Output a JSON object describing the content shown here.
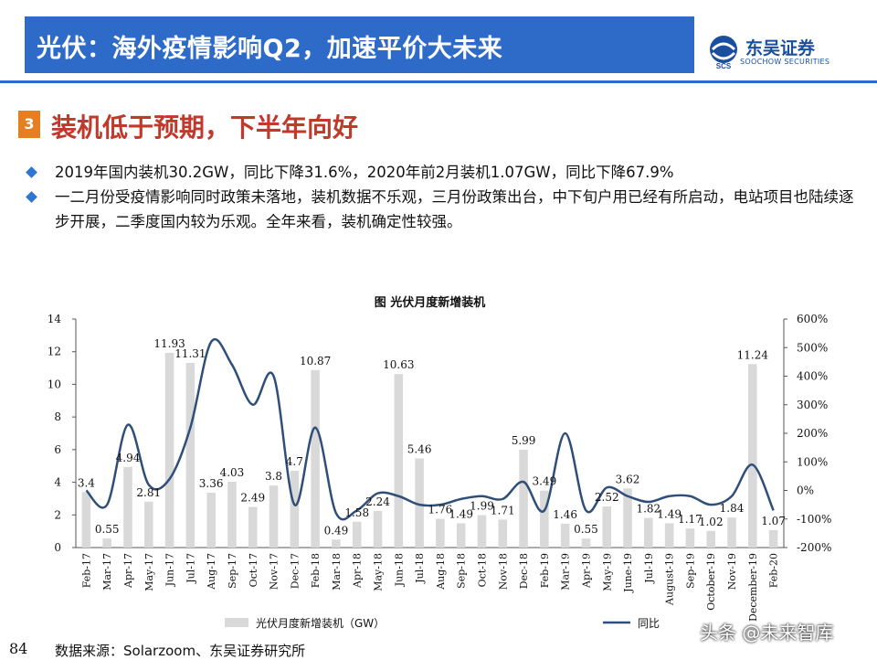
{
  "header": {
    "title": "光伏：海外疫情影响Q2，加速平价大未来",
    "logo_cn": "东吴证券",
    "logo_en": "SOOCHOW SECURITIES",
    "logo_mark": "SCS"
  },
  "section": {
    "number": "3",
    "title": "装机低于预期，下半年向好"
  },
  "bullets": [
    "2019年国内装机30.2GW，同比下降31.6%，2020年前2月装机1.07GW，同比下降67.9%",
    "一二月份受疫情影响同时政策未落地，装机数据不乐观，三月份政策出台，中下旬户用已经有所启动，电站项目也陆续逐步开展，二季度国内较为乐观。全年来看，装机确定性较强。"
  ],
  "chart_data": {
    "type": "bar",
    "title": "图  光伏月度新增装机",
    "categories": [
      "Feb-17",
      "Mar-17",
      "Apr-17",
      "May-17",
      "Jun-17",
      "Jul-17",
      "Aug-17",
      "Sep-17",
      "Oct-17",
      "Nov-17",
      "Dec-17",
      "Feb-18",
      "Mar-18",
      "Apr-18",
      "May-18",
      "Jun-18",
      "Jul-18",
      "Aug-18",
      "Sep-18",
      "Oct-18",
      "Nov-18",
      "Dec-18",
      "Feb-19",
      "Mar-19",
      "Apr-19",
      "May-19",
      "June-19",
      "Jul-19",
      "August-19",
      "Sep-19",
      "October-19",
      "Nov-19",
      "December-19",
      "Feb-20"
    ],
    "series": [
      {
        "name": "光伏月度新增装机（GW）",
        "type": "bar",
        "axis": "left",
        "color": "#d9d9d9",
        "values": [
          3.4,
          0.55,
          4.94,
          2.81,
          11.93,
          11.31,
          3.36,
          4.03,
          2.49,
          3.8,
          4.7,
          10.87,
          0.49,
          1.58,
          2.24,
          10.63,
          5.46,
          1.76,
          1.49,
          1.99,
          1.71,
          5.99,
          3.49,
          1.46,
          0.55,
          2.52,
          3.62,
          1.82,
          1.49,
          1.17,
          1.02,
          1.84,
          11.24,
          1.07
        ],
        "labels": [
          "3.4",
          "0.55",
          "4.94",
          "2.81",
          "11.93",
          "11.31",
          "3.36",
          "4.03",
          "2.49",
          "3.8",
          "4.7",
          "10.87",
          "0.49",
          "1.58",
          "2.24",
          "10.63",
          "5.46",
          "1.76",
          "1.49",
          "1.99",
          "1.71",
          "5.99",
          "3.49",
          "1.46",
          "0.55",
          "2.52",
          "3.62",
          "1.82",
          "1.49",
          "1.17",
          "1.02",
          "1.84",
          "11.24",
          "1.07"
        ]
      },
      {
        "name": "同比",
        "type": "line",
        "axis": "right",
        "color": "#2f4f7a",
        "values": [
          0,
          -50,
          230,
          20,
          40,
          220,
          520,
          440,
          300,
          400,
          -50,
          220,
          -80,
          -70,
          -10,
          -20,
          -50,
          -50,
          -30,
          -20,
          -30,
          30,
          -70,
          200,
          -70,
          10,
          -20,
          -40,
          -20,
          -20,
          -50,
          -20,
          90,
          -70
        ]
      }
    ],
    "ylim_left": [
      0,
      14
    ],
    "yticks_left": [
      "0",
      "2",
      "4",
      "6",
      "8",
      "10",
      "12",
      "14"
    ],
    "ylim_right": [
      -200,
      600
    ],
    "yticks_right": [
      "-200%",
      "-100%",
      "0%",
      "100%",
      "200%",
      "300%",
      "400%",
      "500%",
      "600%"
    ],
    "grid": false,
    "legend_position": "bottom"
  },
  "footer": {
    "page": "84",
    "source": "数据来源：Solarzoom、东吴证券研究所",
    "watermark": "头条 @未来智库"
  }
}
